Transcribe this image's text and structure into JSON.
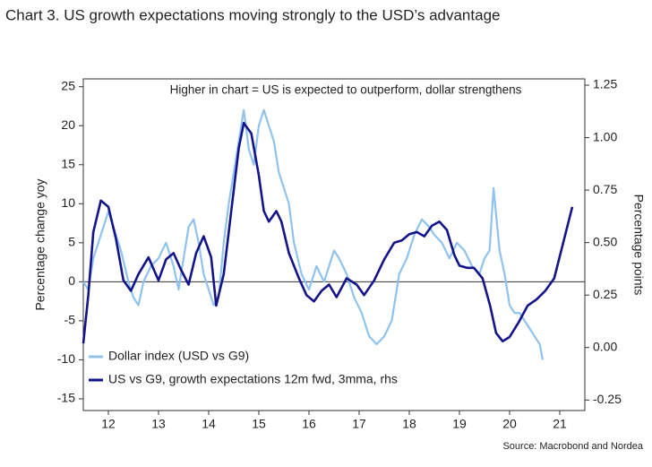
{
  "chart_data": {
    "type": "line",
    "title": "Chart 3. US growth expectations moving strongly to the USD’s advantage",
    "annotation": "Higher in chart = US is expected to outperform, dollar strengthens",
    "source": "Source: Macrobond and Nordea",
    "ylabel": "Percentage change yoy",
    "y2label": "Percentage points",
    "xlim": [
      2012,
      2022
    ],
    "xticks": [
      {
        "value": 2012.5,
        "label": "12"
      },
      {
        "value": 2013.5,
        "label": "13"
      },
      {
        "value": 2014.5,
        "label": "14"
      },
      {
        "value": 2015.5,
        "label": "15"
      },
      {
        "value": 2016.5,
        "label": "16"
      },
      {
        "value": 2017.5,
        "label": "17"
      },
      {
        "value": 2018.5,
        "label": "18"
      },
      {
        "value": 2019.5,
        "label": "19"
      },
      {
        "value": 2020.5,
        "label": "20"
      },
      {
        "value": 2021.5,
        "label": "21"
      }
    ],
    "ylim": [
      -16.5,
      26
    ],
    "yticks": [
      25,
      20,
      15,
      10,
      5,
      0,
      -5,
      -10,
      -15
    ],
    "y2lim": [
      -0.3,
      1.28
    ],
    "y2ticks": [
      {
        "value": 1.25,
        "label": "1.25"
      },
      {
        "value": 1.0,
        "label": "1.00"
      },
      {
        "value": 0.75,
        "label": "0.75"
      },
      {
        "value": 0.5,
        "label": "0.50"
      },
      {
        "value": 0.25,
        "label": "0.25"
      },
      {
        "value": 0.0,
        "label": "0.00"
      },
      {
        "value": -0.25,
        "label": "-0.25"
      }
    ],
    "legend": "lower left",
    "series": [
      {
        "name": "Dollar index (USD vs G9)",
        "color": "#8fc3ee",
        "axis": "y",
        "x": [
          2012.0,
          2012.1,
          2012.2,
          2012.35,
          2012.5,
          2012.6,
          2012.75,
          2012.9,
          2013.0,
          2013.1,
          2013.2,
          2013.35,
          2013.5,
          2013.65,
          2013.8,
          2013.9,
          2014.0,
          2014.1,
          2014.2,
          2014.3,
          2014.4,
          2014.5,
          2014.6,
          2014.7,
          2014.8,
          2014.9,
          2015.0,
          2015.1,
          2015.2,
          2015.3,
          2015.4,
          2015.5,
          2015.6,
          2015.7,
          2015.8,
          2015.9,
          2016.0,
          2016.1,
          2016.2,
          2016.35,
          2016.5,
          2016.65,
          2016.8,
          2016.95,
          2017.0,
          2017.1,
          2017.25,
          2017.4,
          2017.55,
          2017.7,
          2017.85,
          2018.0,
          2018.15,
          2018.3,
          2018.45,
          2018.6,
          2018.75,
          2018.9,
          2019.0,
          2019.15,
          2019.3,
          2019.45,
          2019.6,
          2019.75,
          2019.9,
          2020.0,
          2020.1,
          2020.18,
          2020.3,
          2020.4,
          2020.5,
          2020.6,
          2020.7,
          2020.8,
          2020.9,
          2021.0,
          2021.1,
          2021.16
        ],
        "values": [
          0,
          -1,
          3,
          6,
          9,
          7,
          4,
          0,
          -2,
          -3,
          0,
          2,
          3,
          5,
          2,
          -1,
          3,
          7,
          8,
          5,
          1,
          -1,
          -3,
          -2,
          5,
          10,
          14,
          18,
          22,
          17,
          15,
          20,
          22,
          20,
          18,
          14,
          12,
          10,
          5,
          1,
          -1,
          2,
          0,
          3,
          4,
          3,
          1,
          -2,
          -4,
          -7,
          -8,
          -7,
          -5,
          1,
          3,
          6,
          8,
          7,
          6,
          5,
          3,
          5,
          4,
          2,
          1,
          3,
          4,
          12,
          4,
          1,
          -3,
          -4,
          -4,
          -5,
          -6,
          -7,
          -8,
          -10
        ]
      },
      {
        "name": "US vs G9, growth expectations 12m fwd, 3mma, rhs",
        "color": "#14148a",
        "axis": "y2",
        "x": [
          2012.0,
          2012.1,
          2012.2,
          2012.35,
          2012.5,
          2012.65,
          2012.8,
          2012.95,
          2013.1,
          2013.3,
          2013.5,
          2013.65,
          2013.8,
          2013.95,
          2014.1,
          2014.25,
          2014.4,
          2014.55,
          2014.65,
          2014.8,
          2014.95,
          2015.1,
          2015.2,
          2015.35,
          2015.5,
          2015.6,
          2015.7,
          2015.85,
          2015.95,
          2016.1,
          2016.3,
          2016.45,
          2016.6,
          2016.75,
          2016.9,
          2017.05,
          2017.25,
          2017.45,
          2017.6,
          2017.8,
          2018.0,
          2018.2,
          2018.35,
          2018.5,
          2018.65,
          2018.8,
          2018.95,
          2019.1,
          2019.25,
          2019.4,
          2019.5,
          2019.65,
          2019.79,
          2019.96,
          2020.11,
          2020.23,
          2020.36,
          2020.5,
          2020.68,
          2020.86,
          2021.04,
          2021.21,
          2021.39,
          2021.57,
          2021.75
        ],
        "values": [
          0.02,
          0.25,
          0.55,
          0.7,
          0.67,
          0.52,
          0.32,
          0.27,
          0.35,
          0.43,
          0.32,
          0.42,
          0.45,
          0.37,
          0.3,
          0.45,
          0.53,
          0.43,
          0.2,
          0.35,
          0.65,
          0.95,
          1.07,
          1.02,
          0.82,
          0.65,
          0.6,
          0.65,
          0.6,
          0.45,
          0.33,
          0.25,
          0.22,
          0.27,
          0.3,
          0.24,
          0.33,
          0.3,
          0.25,
          0.32,
          0.42,
          0.5,
          0.51,
          0.54,
          0.55,
          0.53,
          0.58,
          0.6,
          0.56,
          0.44,
          0.39,
          0.38,
          0.38,
          0.33,
          0.2,
          0.07,
          0.03,
          0.05,
          0.12,
          0.2,
          0.23,
          0.27,
          0.33,
          0.5,
          0.67
        ]
      }
    ]
  }
}
